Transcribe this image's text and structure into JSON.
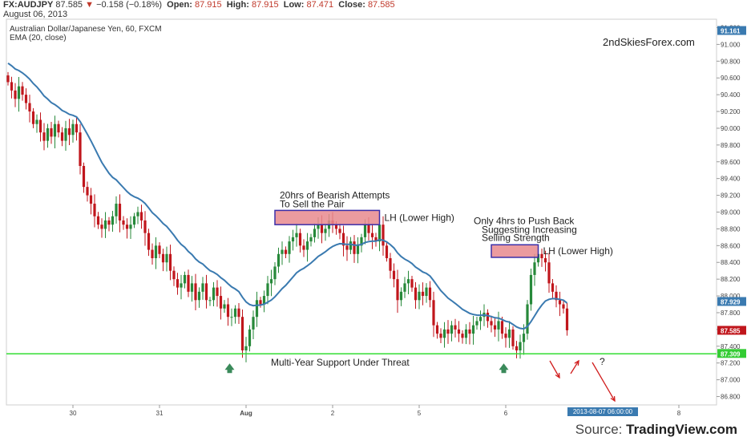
{
  "header": {
    "symbol": "FX:AUDJPY",
    "last": "87.585",
    "change": "−0.158 (−0.18%)",
    "open_label": "Open:",
    "open": "87.915",
    "high_label": "High:",
    "high": "87.915",
    "low_label": "Low:",
    "low": "87.471",
    "close_label": "Close:",
    "close": "87.585",
    "date": "August 06, 2013"
  },
  "chart_title": "Australian Dollar/Japanese Yen, 60, FXCM",
  "ema_title": "EMA (20, close)",
  "watermark": "2ndSkiesForex.com",
  "source_prefix": "Source:",
  "source_brand": "TradingView.com",
  "colors": {
    "up": "#27893a",
    "down": "#c0161c",
    "ema": "#3a7ab0",
    "support": "#33dd33",
    "zone_fill": "#e88a8e",
    "zone_border": "#3b2ea8",
    "arrow_red": "#d01c1c",
    "arrow_green": "#3a8a5a"
  },
  "chart_data": {
    "type": "candlestick",
    "ylim": [
      86.7,
      91.3
    ],
    "y_ticks": [
      "91.200",
      "91.000",
      "90.800",
      "90.600",
      "90.400",
      "90.200",
      "90.000",
      "89.800",
      "89.600",
      "89.400",
      "89.200",
      "89.000",
      "88.800",
      "88.600",
      "88.400",
      "88.200",
      "88.000",
      "87.800",
      "87.600",
      "87.400",
      "87.200",
      "87.000",
      "86.800"
    ],
    "y_tick_values": [
      91.2,
      91.0,
      90.8,
      90.6,
      90.4,
      90.2,
      90.0,
      89.8,
      89.6,
      89.4,
      89.2,
      89.0,
      88.8,
      88.6,
      88.4,
      88.2,
      88.0,
      87.8,
      87.6,
      87.4,
      87.2,
      87.0,
      86.8
    ],
    "x_ticks": [
      {
        "label": "30",
        "bar": 18
      },
      {
        "label": "31",
        "bar": 42
      },
      {
        "label": "Aug",
        "bar": 66
      },
      {
        "label": "2",
        "bar": 90
      },
      {
        "label": "5",
        "bar": 114
      },
      {
        "label": "6",
        "bar": 138
      },
      {
        "label": "8",
        "bar": 186
      }
    ],
    "price_labels": [
      {
        "text": "91.161",
        "value": 91.161,
        "color": "#3a7ab0"
      },
      {
        "text": "87.929",
        "value": 87.929,
        "color": "#3a7ab0"
      },
      {
        "text": "87.585",
        "value": 87.585,
        "color": "#c0161c"
      },
      {
        "text": "87.309",
        "value": 87.309,
        "color": "#33cc33"
      }
    ],
    "time_label": "2013-08-07 06:00:00",
    "support_level": 87.31,
    "support_label": "Multi-Year Support Under Threat",
    "zones": [
      {
        "bar_start": 74,
        "bar_end": 103,
        "top": 89.02,
        "bottom": 88.85,
        "label_top": "20hrs of Bearish Attempts",
        "label_bottom": "To Sell the Pair",
        "side_label": "LH (Lower High)"
      },
      {
        "bar_start": 134,
        "bar_end": 147,
        "top": 88.61,
        "bottom": 88.46,
        "label_top": "Only 4hrs to Push Back",
        "label_mid": "Suggesting Increasing",
        "label_bottom": "Selling Strength",
        "side_label": "LH (Lower High)"
      }
    ],
    "question_mark": "?",
    "candles_close": [
      90.55,
      90.45,
      90.35,
      90.5,
      90.4,
      90.3,
      90.2,
      90.05,
      90.1,
      89.95,
      89.85,
      90.0,
      89.9,
      90.05,
      89.95,
      89.85,
      90.0,
      89.92,
      90.05,
      89.95,
      89.55,
      89.3,
      89.2,
      89.1,
      88.95,
      88.85,
      88.8,
      88.9,
      88.85,
      88.95,
      89.1,
      88.9,
      88.85,
      88.8,
      88.85,
      88.95,
      89.0,
      88.9,
      88.75,
      88.55,
      88.45,
      88.6,
      88.5,
      88.4,
      88.5,
      88.3,
      88.2,
      88.1,
      88.15,
      88.25,
      88.05,
      88.15,
      87.95,
      88.05,
      88.15,
      87.95,
      87.95,
      88.1,
      88.0,
      87.85,
      87.9,
      87.75,
      87.75,
      87.85,
      87.75,
      87.35,
      87.4,
      87.6,
      87.75,
      87.95,
      87.9,
      88.0,
      88.15,
      88.2,
      88.35,
      88.5,
      88.55,
      88.5,
      88.65,
      88.7,
      88.75,
      88.6,
      88.55,
      88.65,
      88.7,
      88.8,
      88.85,
      88.75,
      88.8,
      88.9,
      88.85,
      88.8,
      88.75,
      88.6,
      88.55,
      88.65,
      88.5,
      88.6,
      88.7,
      88.85,
      88.75,
      88.7,
      88.65,
      88.85,
      88.6,
      88.45,
      88.3,
      88.2,
      87.95,
      88.05,
      88.15,
      88.2,
      88.1,
      87.95,
      88.05,
      88.0,
      88.1,
      87.95,
      87.65,
      87.55,
      87.5,
      87.6,
      87.55,
      87.65,
      87.6,
      87.55,
      87.5,
      87.6,
      87.55,
      87.65,
      87.7,
      87.75,
      87.8,
      87.7,
      87.65,
      87.6,
      87.7,
      87.55,
      87.5,
      87.6,
      87.4,
      87.35,
      87.45,
      87.55,
      87.9,
      88.25,
      88.4,
      88.5,
      88.45,
      88.4,
      88.15,
      88.05,
      87.95,
      87.9,
      87.85,
      87.59
    ]
  }
}
